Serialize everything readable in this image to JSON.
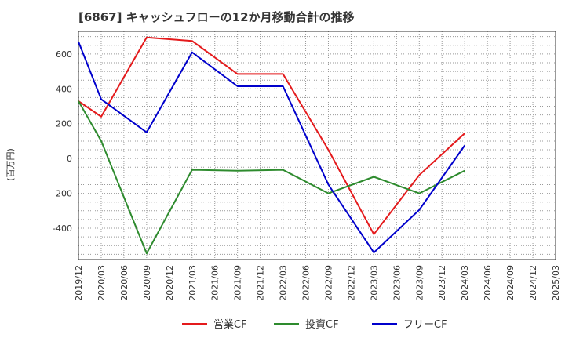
{
  "chart_data": {
    "type": "line",
    "title": "[6867]  キャッシュフローの12か月移動合計の推移",
    "ylabel": "(百万円)",
    "xlabel": "",
    "ylim": [
      -580,
      730
    ],
    "yticks": [
      -400,
      -200,
      0,
      200,
      400,
      600
    ],
    "x": [
      "2019/12",
      "2020/03",
      "2020/06",
      "2020/09",
      "2020/12",
      "2021/03",
      "2021/06",
      "2021/09",
      "2021/12",
      "2022/03",
      "2022/06",
      "2022/09",
      "2022/12",
      "2023/03",
      "2023/06",
      "2023/09",
      "2023/12",
      "2024/03",
      "2024/06",
      "2024/09",
      "2024/12",
      "2025/03"
    ],
    "series": [
      {
        "name": "営業CF",
        "color": "#e41a1c",
        "values": [
          330,
          240,
          null,
          695,
          null,
          675,
          null,
          485,
          null,
          485,
          null,
          50,
          null,
          -435,
          null,
          -95,
          null,
          145,
          null,
          null,
          null,
          null
        ]
      },
      {
        "name": "投資CF",
        "color": "#2e8b2e",
        "values": [
          330,
          100,
          null,
          -545,
          null,
          -65,
          null,
          -70,
          null,
          -65,
          null,
          -200,
          null,
          -105,
          null,
          -200,
          null,
          -70,
          null,
          null,
          null,
          null
        ]
      },
      {
        "name": "フリーCF",
        "color": "#0000cc",
        "values": [
          670,
          340,
          null,
          150,
          null,
          610,
          null,
          415,
          null,
          415,
          null,
          -150,
          null,
          -540,
          null,
          -295,
          null,
          75,
          null,
          null,
          null,
          null
        ]
      }
    ],
    "grid": true,
    "legend": "bottom"
  }
}
